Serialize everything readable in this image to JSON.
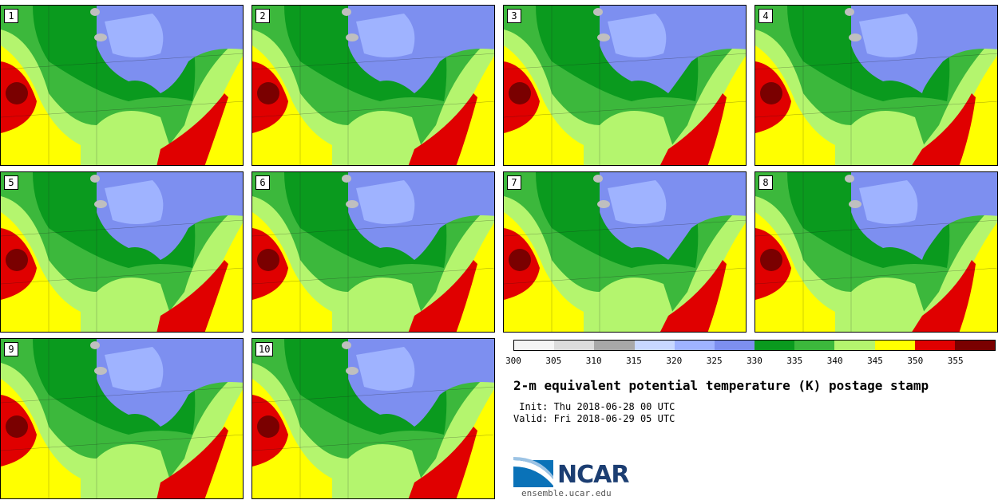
{
  "panels": [
    {
      "label": "1"
    },
    {
      "label": "2"
    },
    {
      "label": "3"
    },
    {
      "label": "4"
    },
    {
      "label": "5"
    },
    {
      "label": "6"
    },
    {
      "label": "7"
    },
    {
      "label": "8"
    },
    {
      "label": "9"
    },
    {
      "label": "10"
    }
  ],
  "colorbar": {
    "colors": [
      "#f5f5f5",
      "#dcdcdc",
      "#a8a8a8",
      "#c8d8ff",
      "#9fb3ff",
      "#7d8ff0",
      "#0a9a1e",
      "#3cb83c",
      "#b4f56e",
      "#ffff00",
      "#e00000",
      "#7a0000"
    ],
    "tick_labels": [
      "300",
      "305",
      "310",
      "315",
      "320",
      "325",
      "330",
      "335",
      "340",
      "345",
      "350",
      "355"
    ]
  },
  "title": "2-m equivalent potential temperature (K) postage stamp",
  "init": " Init: Thu 2018-06-28 00 UTC",
  "valid": "Valid: Fri 2018-06-29 05 UTC",
  "logo": {
    "name": "NCAR",
    "website": "ensemble.ucar.edu"
  }
}
